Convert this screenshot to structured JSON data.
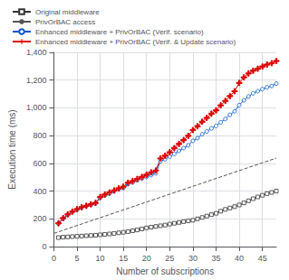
{
  "chart_data": {
    "type": "line",
    "xlabel": "Number of subscriptions",
    "ylabel": "Execution time (ms)",
    "xlim": [
      0,
      48
    ],
    "ylim": [
      0,
      1400
    ],
    "xticks": [
      0,
      5,
      10,
      15,
      20,
      25,
      30,
      35,
      40,
      45
    ],
    "yticks": [
      0,
      200,
      400,
      600,
      800,
      1000,
      1200,
      1400
    ],
    "grid": true,
    "legend": "upper left",
    "series": [
      {
        "name": "Original middleware",
        "color": "#333333",
        "marker": "square",
        "line_style": "solid",
        "x": [
          1,
          2,
          3,
          4,
          5,
          6,
          7,
          8,
          9,
          10,
          11,
          12,
          13,
          14,
          15,
          16,
          17,
          18,
          19,
          20,
          21,
          22,
          23,
          24,
          25,
          26,
          27,
          28,
          29,
          30,
          31,
          32,
          33,
          34,
          35,
          36,
          37,
          38,
          39,
          40,
          41,
          42,
          43,
          44,
          45,
          46,
          47,
          48
        ],
        "values": [
          65,
          68,
          70,
          72,
          74,
          76,
          78,
          80,
          82,
          85,
          88,
          91,
          95,
          99,
          103,
          108,
          114,
          120,
          127,
          135,
          140,
          145,
          150,
          155,
          162,
          168,
          174,
          180,
          185,
          190,
          200,
          210,
          220,
          230,
          240,
          255,
          268,
          278,
          288,
          300,
          315,
          330,
          345,
          358,
          370,
          382,
          390,
          400
        ]
      },
      {
        "name": "PrivOrBAC access",
        "color": "#555555",
        "marker": "none",
        "line_style": "dashed",
        "x": [
          0,
          48
        ],
        "values": [
          95,
          638
        ]
      },
      {
        "name": "Enhanced middleware + PrivOrBAC (Verif. scenario)",
        "color": "#0055cc",
        "marker": "circle",
        "line_style": "solid",
        "x": [
          1,
          2,
          3,
          4,
          5,
          6,
          7,
          8,
          9,
          10,
          11,
          12,
          13,
          14,
          15,
          16,
          17,
          18,
          19,
          20,
          21,
          22,
          23,
          24,
          25,
          26,
          27,
          28,
          29,
          30,
          31,
          32,
          33,
          34,
          35,
          36,
          37,
          38,
          39,
          40,
          41,
          42,
          43,
          44,
          45,
          46,
          47,
          48
        ],
        "values": [
          165,
          200,
          228,
          248,
          265,
          280,
          290,
          300,
          310,
          350,
          368,
          382,
          398,
          412,
          422,
          450,
          462,
          478,
          490,
          502,
          515,
          528,
          615,
          630,
          648,
          668,
          690,
          710,
          730,
          762,
          782,
          810,
          830,
          852,
          870,
          896,
          920,
          950,
          975,
          1020,
          1055,
          1082,
          1105,
          1120,
          1135,
          1148,
          1158,
          1175
        ]
      },
      {
        "name": "Enhanced middleware + PrivOrBAC (Verif. & Update scenario)",
        "color": "#dd0000",
        "marker": "plus",
        "line_style": "solid",
        "x": [
          1,
          2,
          3,
          4,
          5,
          6,
          7,
          8,
          9,
          10,
          11,
          12,
          13,
          14,
          15,
          16,
          17,
          18,
          19,
          20,
          21,
          22,
          23,
          24,
          25,
          26,
          27,
          28,
          29,
          30,
          31,
          32,
          33,
          34,
          35,
          36,
          37,
          38,
          39,
          40,
          41,
          42,
          43,
          44,
          45,
          46,
          47,
          48
        ],
        "values": [
          168,
          205,
          232,
          252,
          270,
          284,
          294,
          305,
          315,
          358,
          375,
          390,
          405,
          420,
          432,
          460,
          472,
          488,
          502,
          518,
          535,
          548,
          635,
          655,
          680,
          710,
          740,
          768,
          798,
          840,
          868,
          900,
          928,
          958,
          982,
          1018,
          1050,
          1085,
          1120,
          1180,
          1220,
          1248,
          1268,
          1282,
          1298,
          1312,
          1322,
          1338
        ]
      }
    ]
  }
}
